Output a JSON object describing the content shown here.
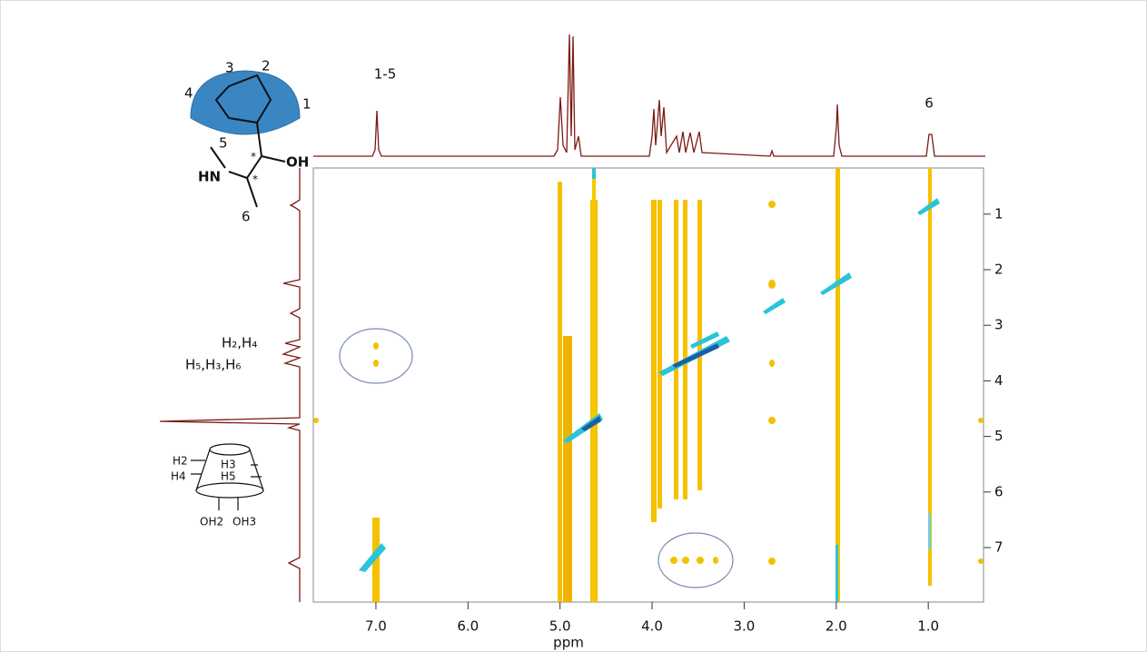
{
  "chart_data": {
    "type": "contour",
    "xlabel": "ppm",
    "xlim": [
      7.68,
      0.4
    ],
    "ylim": [
      0.17,
      7.98
    ],
    "xticks": [
      {
        "value": 7,
        "label": "7.0"
      },
      {
        "value": 6,
        "label": "6.0"
      },
      {
        "value": 5,
        "label": "5.0"
      },
      {
        "value": 4,
        "label": "4.0"
      },
      {
        "value": 3,
        "label": "3.0"
      },
      {
        "value": 2,
        "label": "2.0"
      },
      {
        "value": 1,
        "label": "1.0"
      }
    ],
    "yticks": [
      1,
      2,
      3,
      4,
      5,
      6,
      7
    ],
    "annotations": {
      "aromatic": "1-5",
      "methyl": "6",
      "guest_h2h4": "H₂,H₄",
      "guest_h5h3h6": "H₅,H₃,H₆",
      "mol_1": "1",
      "mol_2": "2",
      "mol_3": "3",
      "mol_4": "4",
      "mol_5": "5",
      "mol_6": "6",
      "mol_hn": "HN",
      "mol_oh": "OH",
      "star_a": "*",
      "star_b": "*",
      "cd_h2": "H2",
      "cd_h3": "H3",
      "cd_h4": "H4",
      "cd_h5": "H5",
      "cd_oh2": "OH2",
      "cd_oh3": "OH3"
    }
  }
}
